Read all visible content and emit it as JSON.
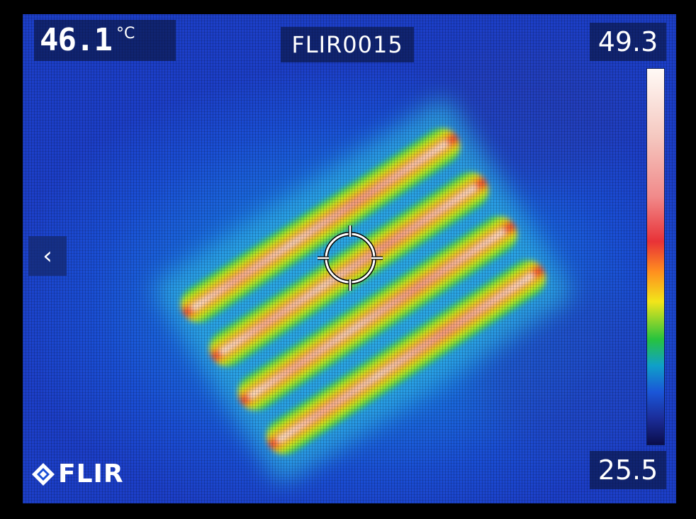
{
  "spot_temperature": {
    "value": "46.1",
    "unit": "°C"
  },
  "file_name": "FLIR0015",
  "scale": {
    "max": "49.3",
    "min": "25.5"
  },
  "nav": {
    "back_label": "‹"
  },
  "brand": {
    "name": "FLIR"
  },
  "palette": {
    "hot": "#fdf4ee",
    "red": "#ea2a31",
    "orange": "#ff9a1c",
    "yellow": "#d7ef1b",
    "green": "#2bd05a",
    "background_blue": "#1a4fd6"
  },
  "icons": {
    "back": "chevron-left-icon",
    "spot": "crosshair-icon",
    "logo": "flir-logo-icon"
  }
}
